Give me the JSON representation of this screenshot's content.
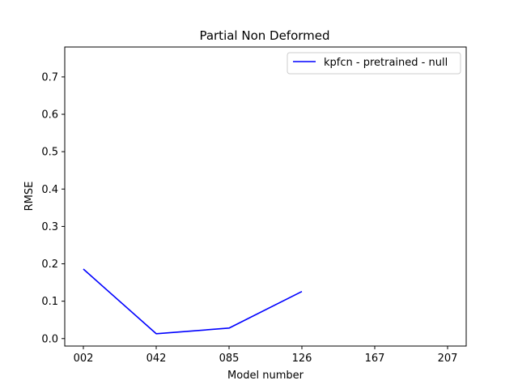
{
  "chart_data": {
    "type": "line",
    "title": "Partial Non Deformed",
    "xlabel": "Model number",
    "ylabel": "RMSE",
    "categories": [
      "002",
      "042",
      "085",
      "126",
      "167",
      "207"
    ],
    "ylim": [
      -0.02,
      0.78
    ],
    "yticks": [
      0.0,
      0.1,
      0.2,
      0.3,
      0.4,
      0.5,
      0.6,
      0.7
    ],
    "ytick_labels": [
      "0.0",
      "0.1",
      "0.2",
      "0.3",
      "0.4",
      "0.5",
      "0.6",
      "0.7"
    ],
    "grid": false,
    "legend_position": "top-right",
    "series": [
      {
        "name": "kpfcn - pretrained - null",
        "color": "#0000ff",
        "values": [
          0.186,
          0.013,
          0.028,
          0.126,
          null,
          null
        ]
      }
    ]
  }
}
